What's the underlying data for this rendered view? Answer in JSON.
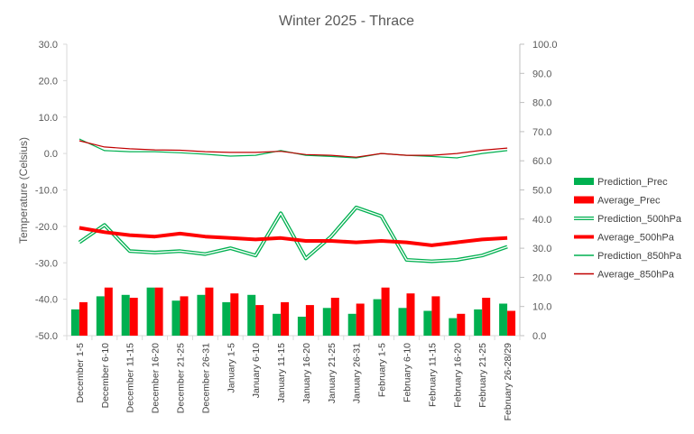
{
  "chart_data": {
    "type": "bar",
    "title": "Winter 2025 - Thrace",
    "ylabel": "Temperature (Celsius)",
    "y_left": {
      "min": -50,
      "max": 30,
      "step": 10,
      "tick_labels": [
        "-50.0",
        "-40.0",
        "-30.0",
        "-20.0",
        "-10.0",
        "0.0",
        "10.0",
        "20.0",
        "30.0"
      ]
    },
    "y_right": {
      "min": 0,
      "max": 100,
      "step": 10,
      "tick_labels": [
        "0.0",
        "10.0",
        "20.0",
        "30.0",
        "40.0",
        "50.0",
        "60.0",
        "70.0",
        "80.0",
        "90.0",
        "100.0"
      ]
    },
    "categories": [
      "December 1-5",
      "December 6-10",
      "December 11-15",
      "December 16-20",
      "December 21-25",
      "December 26-31",
      "January 1-5",
      "January 6-10",
      "January 11-15",
      "January 16-20",
      "January 21-25",
      "January 26-31",
      "February 1-5",
      "February 6-10",
      "February 11-15",
      "February 16-20",
      "February 21-25",
      "February 26-28/29"
    ],
    "legend_position": "right",
    "series": [
      {
        "name": "Prediction_Prec",
        "kind": "bar",
        "axis": "right",
        "color": "#00b050",
        "values": [
          9,
          13.5,
          14,
          16.5,
          12,
          14,
          11.5,
          14,
          7.5,
          6.5,
          9.5,
          7.5,
          12.5,
          9.5,
          8.5,
          6,
          9,
          11
        ]
      },
      {
        "name": "Average_Prec",
        "kind": "bar",
        "axis": "right",
        "color": "#ff0000",
        "values": [
          11.5,
          16.5,
          13,
          16.5,
          13.5,
          16.5,
          14.5,
          10.5,
          11.5,
          10.5,
          13,
          11,
          16.5,
          14.5,
          13.5,
          7.5,
          13,
          8.5
        ]
      },
      {
        "name": "Prediction_500hPa",
        "kind": "line",
        "axis": "right",
        "color": "#00b050",
        "style": "double",
        "values": [
          32,
          38,
          29,
          28.5,
          29,
          28,
          30,
          27.5,
          42,
          26.5,
          34,
          44,
          41,
          26,
          25.5,
          26,
          27.5,
          30.5
        ]
      },
      {
        "name": "Average_500hPa",
        "kind": "line",
        "axis": "right",
        "color": "#ff0000",
        "style": "thick",
        "values": [
          37,
          35.5,
          34.5,
          34,
          35,
          34,
          33.5,
          33,
          33.5,
          32.5,
          32.5,
          32,
          32.5,
          32,
          31,
          32,
          33,
          33.5
        ]
      },
      {
        "name": "Prediction_850hPa",
        "kind": "line",
        "axis": "left",
        "color": "#00b050",
        "style": "thin",
        "values": [
          4,
          0.8,
          0.5,
          0.5,
          0.2,
          -0.2,
          -0.7,
          -0.5,
          0.8,
          -0.5,
          -0.8,
          -1.2,
          0,
          -0.5,
          -0.8,
          -1.2,
          0,
          0.8
        ]
      },
      {
        "name": "Average_850hPa",
        "kind": "line",
        "axis": "left",
        "color": "#c00000",
        "style": "thin",
        "values": [
          3.5,
          1.8,
          1.3,
          1,
          0.9,
          0.5,
          0.3,
          0.3,
          0.6,
          -0.3,
          -0.5,
          -1,
          0,
          -0.5,
          -0.5,
          0,
          0.9,
          1.5
        ]
      }
    ]
  }
}
